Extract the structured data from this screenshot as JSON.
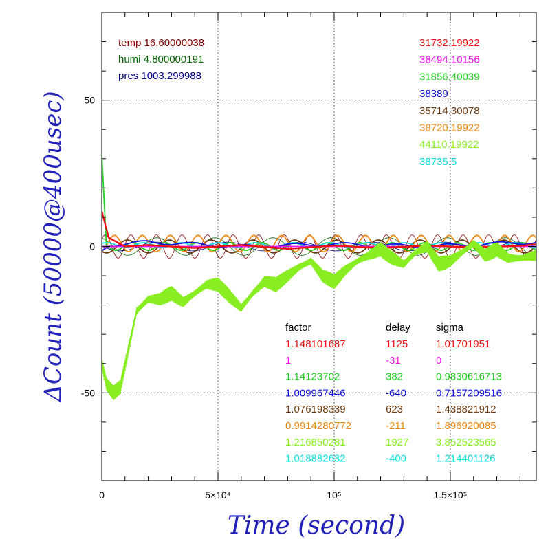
{
  "chart_data": {
    "type": "line",
    "xlabel": "Time (second)",
    "ylabel": "ΔCount (50000@400usec)",
    "xlim": [
      0,
      187000
    ],
    "ylim": [
      -80,
      80
    ],
    "x_ticks": [
      {
        "value": 0,
        "label": "0"
      },
      {
        "value": 50000,
        "label": "5×10⁴"
      },
      {
        "value": 100000,
        "label": "10⁵"
      },
      {
        "value": 150000,
        "label": "1.5×10⁵"
      }
    ],
    "y_ticks": [
      {
        "value": 50,
        "label": "50"
      },
      {
        "value": 0,
        "label": "0"
      },
      {
        "value": -50,
        "label": "-50"
      }
    ],
    "grid": true,
    "env": [
      {
        "text": "temp 16.60000038",
        "color": "#8b0000"
      },
      {
        "text": "humi 4.800000191",
        "color": "#006400"
      },
      {
        "text": "pres 1003.299988",
        "color": "#00008b"
      }
    ],
    "table_headers": [
      "factor",
      "delay",
      "sigma"
    ],
    "series": [
      {
        "mean": "31732.19922",
        "factor": "1.148101687",
        "delay": "1125",
        "sigma": "1.01701951",
        "color": "#ee1111",
        "x": [
          0,
          3000,
          10000,
          20000,
          40000,
          60000,
          80000,
          100000,
          120000,
          140000,
          160000,
          180000,
          187000
        ],
        "y": [
          12,
          3,
          0,
          0.5,
          -0.5,
          0.5,
          -0.8,
          0.3,
          -0.5,
          0.3,
          -0.3,
          0.2,
          0.8
        ],
        "amp": 0,
        "wave": 0
      },
      {
        "mean": "38494.10156",
        "factor": "1",
        "delay": "-31",
        "sigma": "0",
        "color": "#ee11ee",
        "x": [
          0,
          187000
        ],
        "y": [
          0,
          0
        ],
        "amp": 0,
        "wave": 0
      },
      {
        "mean": "31856.40039",
        "factor": "1.14123702",
        "delay": "382",
        "sigma": "0.9830616713",
        "color": "#22cc22",
        "x": [
          0,
          2000,
          10000,
          50000,
          100000,
          150000,
          180000,
          187000
        ],
        "y": [
          30,
          0,
          0,
          0,
          0,
          0,
          0,
          0
        ],
        "amp": 1.3,
        "wave": 14000
      },
      {
        "mean": "38389",
        "factor": "1.009967446",
        "delay": "-640",
        "sigma": "0.7157209516",
        "color": "#1111dd",
        "x": [
          0,
          3000,
          20000,
          60000,
          100000,
          140000,
          187000
        ],
        "y": [
          -1.5,
          0.5,
          1.5,
          0,
          0.8,
          0,
          1.5
        ],
        "amp": 0.6,
        "wave": 22000
      },
      {
        "mean": "35714.30078",
        "factor": "1.076198339",
        "delay": "623",
        "sigma": "1.438821912",
        "color": "#6b3a10",
        "x": [
          0,
          187000
        ],
        "y": [
          0,
          0
        ],
        "amp": 2.2,
        "wave": 18000
      },
      {
        "mean": "38720.19922",
        "factor": "0.9914280772",
        "delay": "-211",
        "sigma": "1.896920085",
        "color": "#ee8811",
        "x": [
          0,
          187000
        ],
        "y": [
          1,
          1
        ],
        "amp": 2.8,
        "wave": 12000
      },
      {
        "mean": "44110.19922",
        "factor": "1.216850281",
        "delay": "1927",
        "sigma": "3.852523565",
        "color": "#88ee22",
        "x": [
          0,
          2000,
          5000,
          8000,
          15000,
          20000,
          25000,
          30000,
          35000,
          40000,
          45000,
          50000,
          55000,
          60000,
          65000,
          70000,
          75000,
          80000,
          85000,
          90000,
          95000,
          100000,
          105000,
          110000,
          115000,
          120000,
          125000,
          130000,
          135000,
          140000,
          145000,
          150000,
          155000,
          160000,
          165000,
          170000,
          175000,
          180000,
          187000
        ],
        "y": [
          -40,
          -47,
          -50,
          -48,
          -22,
          -18,
          -18,
          -16,
          -19,
          -16,
          -13,
          -13,
          -17,
          -21,
          -16,
          -12,
          -13,
          -10,
          -7,
          -5,
          -10,
          -12,
          -8,
          -5,
          -3,
          -1,
          -4,
          -6,
          -2,
          0,
          -6,
          -5,
          -2,
          1,
          -3,
          -1,
          -4,
          -4,
          -3
        ],
        "amp": 2.5,
        "wave": 400
      },
      {
        "mean": "38735.5",
        "factor": "1.018882632",
        "delay": "-400",
        "sigma": "1.214401126",
        "color": "#11dddd",
        "x": [
          0,
          187000
        ],
        "y": [
          0.5,
          0.5
        ],
        "amp": 0.8,
        "wave": 16000
      }
    ],
    "extra_lines": [
      {
        "color": "#8b0000",
        "amp": 4,
        "wave": 11000,
        "phase": 0.7
      },
      {
        "color": "#006400",
        "amp": 3,
        "wave": 25000,
        "phase": 1.9
      },
      {
        "color": "#00008b",
        "amp": 1.5,
        "wave": 31000,
        "phase": 3.1
      }
    ]
  }
}
